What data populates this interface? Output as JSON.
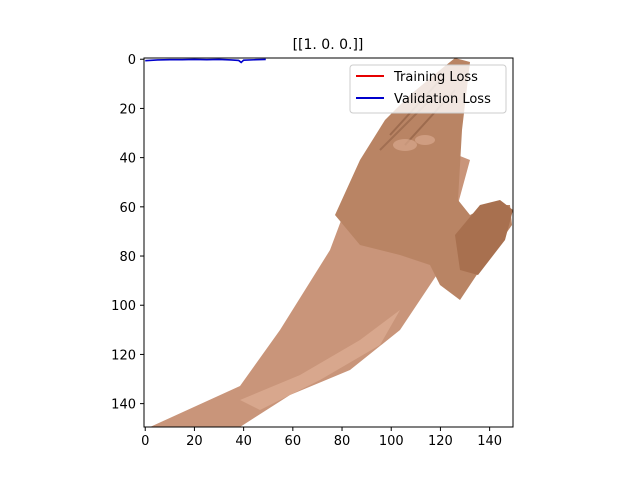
{
  "chart_data": {
    "type": "line",
    "title": "[[1. 0. 0.]]",
    "xlabel": "",
    "ylabel": "",
    "xlim": [
      -0.5,
      149.5
    ],
    "ylim": [
      149.5,
      -0.5
    ],
    "y_inverted": true,
    "background": "photo-of-hand",
    "xticks": [
      0,
      20,
      40,
      60,
      80,
      100,
      120,
      140
    ],
    "yticks": [
      0,
      20,
      40,
      60,
      80,
      100,
      120,
      140
    ],
    "grid": false,
    "legend_position": "top-right",
    "series": [
      {
        "name": "Training Loss",
        "color": "#e60000",
        "x": [],
        "y": []
      },
      {
        "name": "Validation Loss",
        "color": "#0000cc",
        "x": [
          0,
          5,
          10,
          15,
          20,
          25,
          30,
          35,
          38,
          39,
          40,
          45,
          49
        ],
        "y": [
          0.6,
          0.3,
          0.2,
          0.2,
          0.1,
          0.2,
          0.1,
          0.3,
          0.5,
          1.3,
          0.4,
          0.2,
          0.1
        ]
      }
    ]
  }
}
